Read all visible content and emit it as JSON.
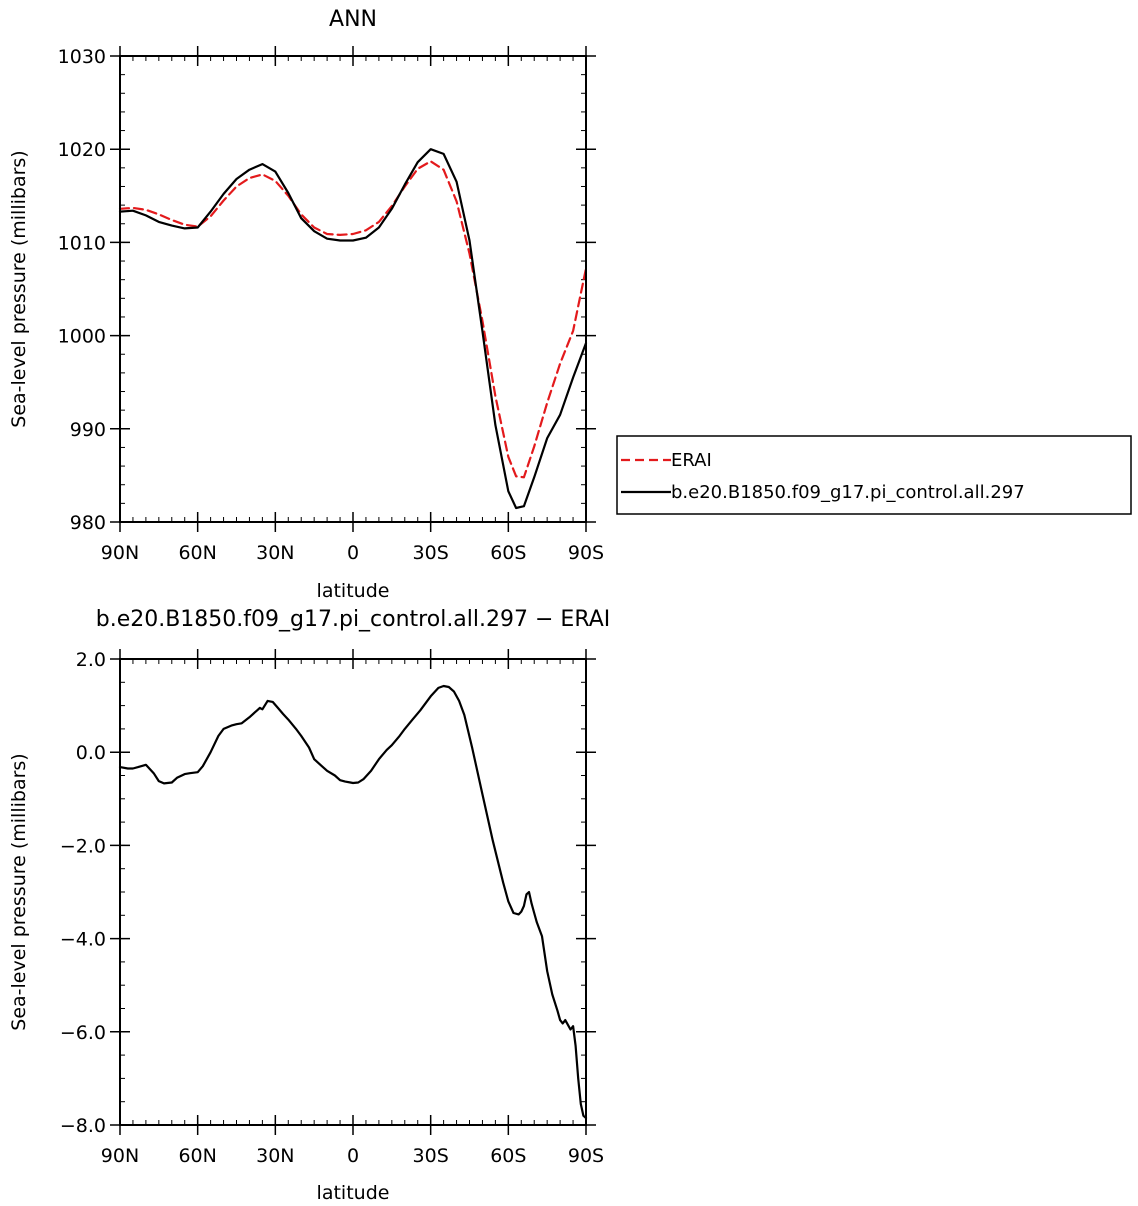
{
  "chart_data": [
    {
      "type": "line",
      "title": "ANN",
      "xlabel": "latitude",
      "ylabel": "Sea-level pressure (millibars)",
      "xlim": [
        90,
        -90
      ],
      "ylim": [
        980,
        1030
      ],
      "xticks": [
        {
          "value": 90,
          "label": "90N"
        },
        {
          "value": 60,
          "label": "60N"
        },
        {
          "value": 30,
          "label": "30N"
        },
        {
          "value": 0,
          "label": "0"
        },
        {
          "value": -30,
          "label": "30S"
        },
        {
          "value": -60,
          "label": "60S"
        },
        {
          "value": -90,
          "label": "90S"
        }
      ],
      "yticks": [
        {
          "value": 980,
          "label": "980"
        },
        {
          "value": 990,
          "label": "990"
        },
        {
          "value": 1000,
          "label": "1000"
        },
        {
          "value": 1010,
          "label": "1010"
        },
        {
          "value": 1020,
          "label": "1020"
        },
        {
          "value": 1030,
          "label": "1030"
        }
      ],
      "grid": false,
      "legend": "right",
      "series": [
        {
          "name": "ERAI",
          "color": "#e31a1c",
          "style": "dashed",
          "x": [
            90,
            85,
            80,
            75,
            70,
            65,
            60,
            55,
            50,
            45,
            40,
            35,
            30,
            25,
            20,
            15,
            10,
            5,
            0,
            -5,
            -10,
            -15,
            -20,
            -25,
            -30,
            -35,
            -40,
            -45,
            -50,
            -55,
            -60,
            -63,
            -66,
            -70,
            -75,
            -80,
            -85,
            -90
          ],
          "y": [
            1013.6,
            1013.7,
            1013.5,
            1013.0,
            1012.4,
            1011.9,
            1011.7,
            1012.8,
            1014.5,
            1016.0,
            1016.9,
            1017.3,
            1016.6,
            1015.0,
            1013.0,
            1011.6,
            1010.9,
            1010.8,
            1010.9,
            1011.3,
            1012.2,
            1013.9,
            1016.0,
            1017.9,
            1018.7,
            1017.8,
            1014.4,
            1008.8,
            1001.6,
            993.5,
            987.0,
            984.9,
            984.8,
            988.1,
            992.8,
            997.0,
            1000.5,
            1007.2
          ]
        },
        {
          "name": "b.e20.B1850.f09_g17.pi_control.all.297",
          "color": "#000000",
          "style": "solid",
          "x": [
            90,
            85,
            80,
            75,
            70,
            65,
            60,
            55,
            50,
            45,
            40,
            35,
            30,
            25,
            20,
            15,
            10,
            5,
            0,
            -5,
            -10,
            -15,
            -20,
            -25,
            -30,
            -35,
            -40,
            -45,
            -50,
            -55,
            -60,
            -63,
            -66,
            -70,
            -75,
            -80,
            -85,
            -90
          ],
          "y": [
            1013.3,
            1013.4,
            1012.9,
            1012.2,
            1011.8,
            1011.5,
            1011.6,
            1013.3,
            1015.2,
            1016.8,
            1017.8,
            1018.4,
            1017.6,
            1015.3,
            1012.6,
            1011.2,
            1010.4,
            1010.2,
            1010.2,
            1010.5,
            1011.6,
            1013.6,
            1016.2,
            1018.6,
            1020.0,
            1019.5,
            1016.5,
            1010.2,
            1000.5,
            990.4,
            983.3,
            981.5,
            981.7,
            984.8,
            989.0,
            991.5,
            995.5,
            999.2
          ]
        }
      ]
    },
    {
      "type": "line",
      "title": "b.e20.B1850.f09_g17.pi_control.all.297 − ERAI",
      "xlabel": "latitude",
      "ylabel": "Sea-level pressure (millibars)",
      "xlim": [
        90,
        -90
      ],
      "ylim": [
        -8.0,
        2.0
      ],
      "xticks": [
        {
          "value": 90,
          "label": "90N"
        },
        {
          "value": 60,
          "label": "60N"
        },
        {
          "value": 30,
          "label": "30N"
        },
        {
          "value": 0,
          "label": "0"
        },
        {
          "value": -30,
          "label": "30S"
        },
        {
          "value": -60,
          "label": "60S"
        },
        {
          "value": -90,
          "label": "90S"
        }
      ],
      "yticks": [
        {
          "value": 2.0,
          "label": "2.0"
        },
        {
          "value": 0.0,
          "label": "0.0"
        },
        {
          "value": -2.0,
          "label": "−2.0"
        },
        {
          "value": -4.0,
          "label": "−4.0"
        },
        {
          "value": -6.0,
          "label": "−6.0"
        },
        {
          "value": -8.0,
          "label": "−8.0"
        }
      ],
      "grid": false,
      "series": [
        {
          "color": "#000000",
          "style": "solid",
          "x": [
            90,
            87,
            85,
            83,
            80,
            77,
            75,
            73,
            70,
            68,
            65,
            63,
            60,
            58,
            55,
            52,
            50,
            47,
            45,
            43,
            40,
            38,
            37,
            36,
            35,
            33,
            31,
            29,
            27,
            25,
            22,
            20,
            17,
            15,
            12,
            10,
            7,
            5,
            3,
            1,
            0,
            -2,
            -4,
            -7,
            -10,
            -13,
            -15,
            -18,
            -20,
            -23,
            -26,
            -30,
            -33,
            -35,
            -37,
            -39,
            -41,
            -43,
            -46,
            -50,
            -54,
            -58,
            -60,
            -62,
            -64,
            -65,
            -66,
            -67,
            -68,
            -69,
            -70,
            -71,
            -73,
            -75,
            -77,
            -79,
            -80,
            -81,
            -82,
            -83,
            -84,
            -85,
            -86,
            -87,
            -88,
            -89,
            -90
          ],
          "y": [
            -0.32,
            -0.35,
            -0.35,
            -0.32,
            -0.27,
            -0.45,
            -0.62,
            -0.67,
            -0.65,
            -0.55,
            -0.47,
            -0.45,
            -0.43,
            -0.3,
            0.0,
            0.35,
            0.5,
            0.57,
            0.6,
            0.62,
            0.75,
            0.85,
            0.9,
            0.95,
            0.92,
            1.1,
            1.08,
            0.95,
            0.82,
            0.7,
            0.5,
            0.35,
            0.1,
            -0.15,
            -0.3,
            -0.4,
            -0.5,
            -0.6,
            -0.63,
            -0.65,
            -0.66,
            -0.65,
            -0.58,
            -0.4,
            -0.15,
            0.05,
            0.15,
            0.35,
            0.5,
            0.7,
            0.9,
            1.2,
            1.38,
            1.42,
            1.4,
            1.3,
            1.1,
            0.8,
            0.1,
            -0.9,
            -1.9,
            -2.8,
            -3.2,
            -3.45,
            -3.48,
            -3.42,
            -3.3,
            -3.05,
            -3.0,
            -3.25,
            -3.45,
            -3.65,
            -3.95,
            -4.7,
            -5.2,
            -5.55,
            -5.75,
            -5.82,
            -5.75,
            -5.85,
            -5.95,
            -5.88,
            -6.3,
            -7.0,
            -7.55,
            -7.8,
            -7.85
          ]
        }
      ]
    }
  ]
}
